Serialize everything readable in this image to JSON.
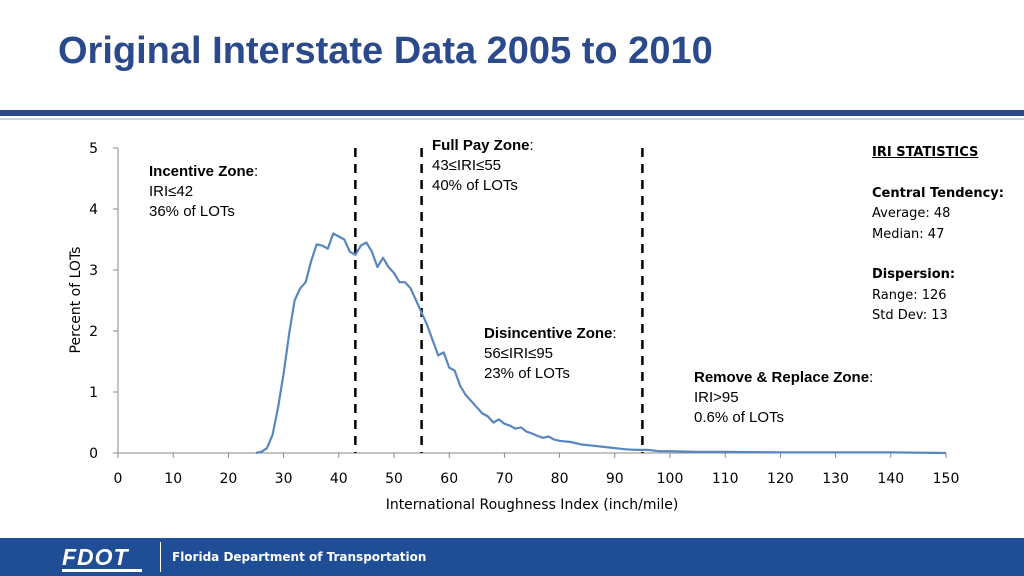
{
  "slide": {
    "title": "Original Interstate Data 2005 to 2010"
  },
  "zones": {
    "incentive": {
      "name": "Incentive Zone",
      "colon": ":",
      "range": "IRI≤42",
      "share": "36% of LOTs"
    },
    "full_pay": {
      "name": "Full Pay Zone",
      "colon": ":",
      "range": "43≤IRI≤55",
      "share": "40% of LOTs"
    },
    "disincentive": {
      "name": "Disincentive Zone",
      "colon": ":",
      "range": "56≤IRI≤95",
      "share": "23% of LOTs"
    },
    "remove_replace": {
      "name": "Remove & Replace Zone",
      "colon": ":",
      "range": "IRI>95",
      "share": "0.6% of LOTs"
    }
  },
  "stats": {
    "heading": "IRI STATISTICS",
    "central_heading": "Central Tendency:",
    "average": "Average: 48",
    "median": "Median: 47",
    "dispersion_heading": "Dispersion:",
    "range": "Range: 126",
    "std_dev": "Std Dev: 13"
  },
  "footer": {
    "logo_text": "FDOT",
    "org_name": "Florida Department of Transportation"
  },
  "colors": {
    "title": "#2b4a8b",
    "line": "#5a86bf",
    "footer": "#1f4e96"
  },
  "chart_data": {
    "type": "line",
    "title": "",
    "xlabel": "International Roughness Index (inch/mile)",
    "ylabel": "Percent of LOTs",
    "xlim": [
      0,
      150
    ],
    "ylim": [
      0,
      5
    ],
    "xticks": [
      0,
      10,
      20,
      30,
      40,
      50,
      60,
      70,
      80,
      90,
      100,
      110,
      120,
      130,
      140,
      150
    ],
    "yticks": [
      0,
      1,
      2,
      3,
      4,
      5
    ],
    "grid": false,
    "legend": "none",
    "zone_boundaries": [
      43,
      55,
      95
    ],
    "series": [
      {
        "x": [
          25,
          26,
          27,
          28,
          29,
          30,
          31,
          32,
          33,
          34,
          35,
          36,
          37,
          38,
          39,
          40,
          41,
          42,
          43,
          44,
          45,
          46,
          47,
          48,
          49,
          50,
          51,
          52,
          53,
          54,
          55,
          56,
          57,
          58,
          59,
          60,
          61,
          62,
          63,
          64,
          65,
          66,
          67,
          68,
          69,
          70,
          71,
          72,
          73,
          74,
          75,
          76,
          77,
          78,
          79,
          80,
          82,
          84,
          86,
          88,
          90,
          92,
          94,
          96,
          98,
          100,
          105,
          110,
          120,
          130,
          140,
          150
        ],
        "y": [
          0.0,
          0.02,
          0.08,
          0.3,
          0.75,
          1.3,
          1.95,
          2.5,
          2.7,
          2.8,
          3.15,
          3.42,
          3.4,
          3.35,
          3.6,
          3.55,
          3.5,
          3.3,
          3.25,
          3.4,
          3.45,
          3.3,
          3.05,
          3.2,
          3.05,
          2.95,
          2.8,
          2.8,
          2.7,
          2.5,
          2.3,
          2.1,
          1.85,
          1.6,
          1.65,
          1.4,
          1.35,
          1.1,
          0.95,
          0.85,
          0.75,
          0.65,
          0.6,
          0.5,
          0.55,
          0.48,
          0.45,
          0.4,
          0.42,
          0.35,
          0.32,
          0.28,
          0.25,
          0.27,
          0.22,
          0.2,
          0.18,
          0.14,
          0.12,
          0.1,
          0.08,
          0.06,
          0.05,
          0.05,
          0.03,
          0.03,
          0.02,
          0.02,
          0.01,
          0.01,
          0.01,
          0.0
        ]
      }
    ]
  }
}
